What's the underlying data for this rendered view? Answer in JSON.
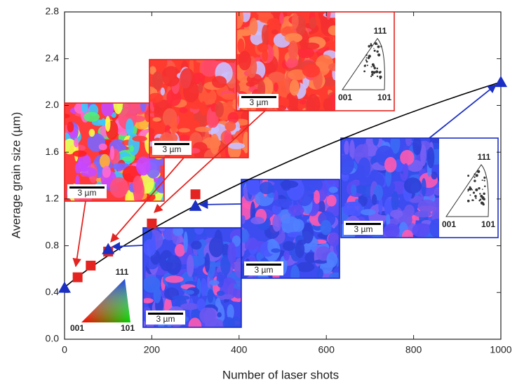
{
  "chart_data": {
    "type": "scatter",
    "x_label": "Number of laser shots",
    "y_label": "Average grain size (µm)",
    "xlim": [
      0,
      1000
    ],
    "ylim": [
      0,
      2.8
    ],
    "xticks": [
      0,
      200,
      400,
      600,
      800,
      1000
    ],
    "yticks": [
      {
        "value": 0,
        "label": "0.0"
      },
      0.4,
      0.8,
      1.2,
      1.6,
      {
        "value": 2,
        "label": "2.0"
      },
      2.4,
      2.8
    ],
    "series": [
      {
        "color": "#e32420",
        "marker": "square",
        "x": [
          30,
          60,
          100,
          200,
          300
        ],
        "values": [
          0.53,
          0.63,
          0.75,
          0.99,
          1.24
        ]
      },
      {
        "color": "#1b2fc4",
        "marker": "triangle",
        "x": [
          0,
          100,
          300,
          1000
        ],
        "values": [
          0.44,
          0.77,
          1.14,
          2.2
        ]
      }
    ],
    "insets": [
      {
        "scale_bar": "3 µm"
      },
      {
        "scale_bar": "3 µm"
      },
      {
        "scale_bar": "3 µm",
        "pole_figure": [
          "111",
          "001",
          "101"
        ]
      },
      {
        "scale_bar": "3 µm"
      },
      {
        "scale_bar": "3 µm"
      },
      {
        "scale_bar": "3 µm",
        "pole_figure": [
          "111",
          "001",
          "101"
        ]
      }
    ],
    "color_key": [
      "111",
      "001",
      "101"
    ]
  }
}
